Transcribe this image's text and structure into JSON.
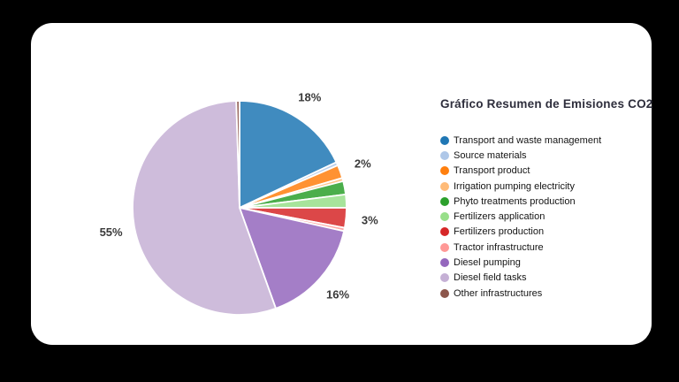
{
  "background_color": "#000000",
  "card": {
    "background_color": "#ffffff"
  },
  "chart_data": {
    "type": "pie",
    "title": "Gráfico Resumen de Emisiones CO2",
    "direction": "clockwise",
    "start_angle": "12-oclock",
    "slice_opacity": 0.85,
    "legend_position": "right",
    "slices": [
      {
        "name": "Transport and waste management",
        "value": 18,
        "pct_label": "18%",
        "color": "#1f77b4"
      },
      {
        "name": "Source materials",
        "value": 0.5,
        "pct_label": "",
        "color": "#aec7e8"
      },
      {
        "name": "Transport product",
        "value": 2,
        "pct_label": "2%",
        "color": "#ff7f0e"
      },
      {
        "name": "Irrigation pumping electricity",
        "value": 0.5,
        "pct_label": "",
        "color": "#ffbb78"
      },
      {
        "name": "Phyto treatments production",
        "value": 2,
        "pct_label": "",
        "color": "#2ca02c"
      },
      {
        "name": "Fertilizers application",
        "value": 2,
        "pct_label": "",
        "color": "#98df8a"
      },
      {
        "name": "Fertilizers production",
        "value": 3,
        "pct_label": "3%",
        "color": "#d62728"
      },
      {
        "name": "Tractor infrastructure",
        "value": 0.5,
        "pct_label": "",
        "color": "#ff9896"
      },
      {
        "name": "Diesel pumping",
        "value": 16,
        "pct_label": "16%",
        "color": "#9467bd"
      },
      {
        "name": "Diesel field tasks",
        "value": 55,
        "pct_label": "55%",
        "color": "#c5b0d5"
      },
      {
        "name": "Other infrastructures",
        "value": 0.5,
        "pct_label": "",
        "color": "#8c564b"
      }
    ]
  }
}
